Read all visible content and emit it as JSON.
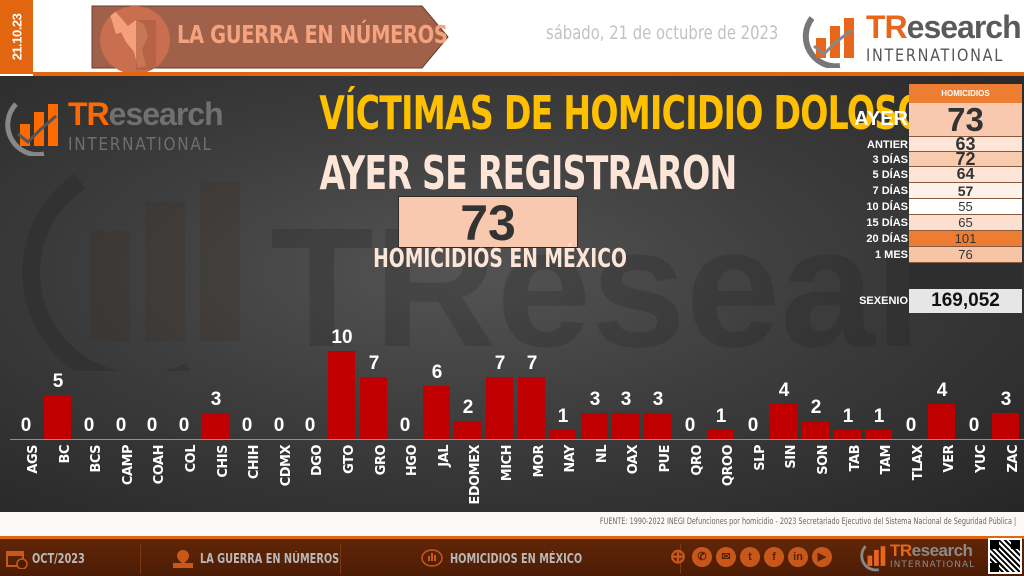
{
  "header": {
    "date_code": "21.10.23",
    "banner_title": "LA GUERRA EN NÚMEROS",
    "date_long": "sábado, 21 de octubre de 2023",
    "logo": {
      "tr": "TR",
      "research": "esearch",
      "international": "INTERNATIONAL"
    }
  },
  "main": {
    "title": "VÍCTIMAS DE HOMICIDIO DOLOSO",
    "subtitle": "AYER SE REGISTRARON",
    "total": "73",
    "total_caption": "HOMICIDIOS EN MÉXICO",
    "watermark": "TResearch"
  },
  "summary": {
    "header": "HOMICIDIOS",
    "rows": [
      {
        "label": "AYER",
        "value": "73",
        "color": "#f8c9ae"
      },
      {
        "label": "ANTIER",
        "value": "63",
        "color": "#fce4d6"
      },
      {
        "label": "3 DÍAS",
        "value": "72",
        "color": "#f8cbad"
      },
      {
        "label": "5 DÍAS",
        "value": "64",
        "color": "#fce4d6"
      },
      {
        "label": "7 DÍAS",
        "value": "57",
        "color": "#fdf1ea"
      },
      {
        "label": "10 DÍAS",
        "value": "55",
        "color": "#ffffff"
      },
      {
        "label": "15 DÍAS",
        "value": "65",
        "color": "#fbe0d0"
      },
      {
        "label": "20 DÍAS",
        "value": "101",
        "color": "#ed7d31"
      },
      {
        "label": "1 MES",
        "value": "76",
        "color": "#f7c4a5"
      }
    ],
    "sexenio_label": "SEXENIO",
    "sexenio_value": "169,052"
  },
  "chart_data": {
    "type": "bar",
    "title": "VÍCTIMAS DE HOMICIDIO DOLOSO",
    "xlabel": "",
    "ylabel": "",
    "ylim": [
      0,
      10
    ],
    "grid": false,
    "legend": null,
    "bar_color": "#c00000",
    "categories": [
      "AGS",
      "BC",
      "BCS",
      "CAMP",
      "COAH",
      "COL",
      "CHIS",
      "CHIH",
      "CDMX",
      "DGO",
      "GTO",
      "GRO",
      "HGO",
      "JAL",
      "EDOMEX",
      "MICH",
      "MOR",
      "NAY",
      "NL",
      "OAX",
      "PUE",
      "QRO",
      "QROO",
      "SLP",
      "SIN",
      "SON",
      "TAB",
      "TAM",
      "TLAX",
      "VER",
      "YUC",
      "ZAC"
    ],
    "values": [
      0,
      5,
      0,
      0,
      0,
      0,
      3,
      0,
      0,
      0,
      10,
      7,
      0,
      6,
      2,
      7,
      7,
      1,
      3,
      3,
      3,
      0,
      1,
      0,
      4,
      2,
      1,
      1,
      0,
      4,
      0,
      3
    ]
  },
  "source": "FUENTE: 1990-2022 INEGI Defunciones por homicidio - 2023 Secretariado Ejecutivo del Sistema Nacional de Seguridad Pública |",
  "footer": {
    "items": [
      {
        "label": "OCT/2023",
        "icon": "calendar-clock-icon"
      },
      {
        "label": "LA GUERRA EN NÚMEROS",
        "icon": "map-pin-icon"
      },
      {
        "label": "HOMICIDIOS EN MÉXICO",
        "icon": "chart-bubble-icon"
      }
    ],
    "social": [
      {
        "name": "globe-icon",
        "glyph": "⊕"
      },
      {
        "name": "whatsapp-icon",
        "glyph": "✆"
      },
      {
        "name": "email-icon",
        "glyph": "✉"
      },
      {
        "name": "twitter-icon",
        "glyph": "t"
      },
      {
        "name": "facebook-icon",
        "glyph": "f"
      },
      {
        "name": "linkedin-icon",
        "glyph": "in"
      },
      {
        "name": "youtube-icon",
        "glyph": "▶"
      }
    ]
  }
}
